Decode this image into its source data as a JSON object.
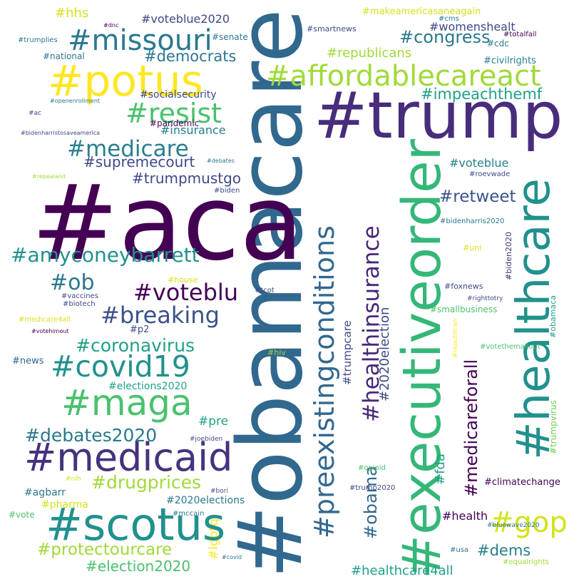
{
  "word_cloud": {
    "palette": {
      "dark_purple": "#440154",
      "indigo": "#46327e",
      "slate_blue": "#365c8d",
      "steel_blue": "#277f8e",
      "teal": "#1fa187",
      "green": "#4ac16d",
      "lime": "#a0da39",
      "yellow": "#fde725"
    },
    "words": {
      "aca": "#aca",
      "obamacare": "#obamacare",
      "trump": "#trump",
      "healthcare": "#healthcare",
      "executiveorder": "#executiveorder",
      "preexistingconditions": "#preexistingconditions",
      "potus": "#potus",
      "affordablecareact": "#affordablecareact",
      "missouri": "#missouri",
      "scotus": "#scotus",
      "medicaid": "#medicaid",
      "maga": "#maga",
      "covid19": "#covid19",
      "resist": "#resist",
      "medicare": "#medicare",
      "amyconeybarrett": "#amyconeybarrett",
      "voteblu": "#voteblu",
      "breaking": "#breaking",
      "ob": "#ob",
      "healthinsurance": "#healthinsurance",
      "medicareforall": "#medicareforall",
      "gop": "#gop",
      "obama": "#obama",
      "congress": "#congress",
      "democrats": "#democrats",
      "impeachthemf": "#impeachthemf",
      "retweet": "#retweet",
      "coronavirus": "#coronavirus",
      "debates2020": "#debates2020",
      "drugprices": "#drugprices",
      "protectourcare": "#protectourcare",
      "election2020": "#election2020",
      "healthcare4all": "#healthcare4all",
      "dems": "#dems",
      "supremecourt": "#supremecourt",
      "trumpmustgo": "#trumpmustgo",
      "republicans": "#republicans",
      "womenshealt": "#womenshealt",
      "hhs": "#hhs",
      "voteblue2020": "#voteblue2020",
      "makeamericasaneagain": "#makeamericasaneagain",
      "insurance": "#insurance",
      "voteblue": "#voteblue",
      "2020election": "#2020election",
      "health": "#health",
      "pre": "#pre",
      "fda": "#fda",
      "socialsecurity": "#socialsecurity",
      "elections2020": "#elections2020",
      "2020elections": "#2020elections",
      "lgbtq": "#lgbtq",
      "agbarr": "#agbarr",
      "pharma": "#pharma",
      "climatechange": "#climatechange",
      "trumpcare": "#trumpcare",
      "pandemic": "#pandemic",
      "news": "#news",
      "p2": "#p2",
      "trumpvirus": "#trumpvirus",
      "civilrights": "#civilrights",
      "smallbusiness": "#smallbusiness",
      "senate": "#senate",
      "national": "#national",
      "smartnews": "#smartnews",
      "cdc": "#cdc",
      "foxnews": "#foxnews",
      "biden2020": "#biden2020",
      "obamaca": "#obamaca",
      "trumplies": "#trumplies",
      "openenrollment": "#openenrollment",
      "ac": "#ac",
      "bidenharristosaveamerica": "#bidenharristosaveamerica",
      "debates": "#debates",
      "repealand": "#repealand",
      "biden": "#biden",
      "dnc": "#dnc",
      "cms": "#cms",
      "totalfail": "#totalfail",
      "roevwade": "#roevwade",
      "bidenharris2020": "#bidenharris2020",
      "uni": "#uni",
      "house": "#house",
      "vaccines": "#vaccines",
      "biotech": "#biotech",
      "tcot": "#tcot",
      "medicare4all": "#medicare4all",
      "votehimout": "#votehimout",
      "hiv": "#hiv",
      "righttotry": "#righttotry",
      "republican": "#republican",
      "votethemallout": "#votethemallout",
      "joebiden": "#joebiden",
      "nih": "#nih",
      "bori": "#bori",
      "mccain": "#mccain",
      "vote": "#vote",
      "covid": "#covid",
      "opioid": "#opioid",
      "trump2020": "#trump2020",
      "bluewave2020": "#bluewave2020",
      "usa": "#usa",
      "equalrights": "#equalrights"
    }
  }
}
